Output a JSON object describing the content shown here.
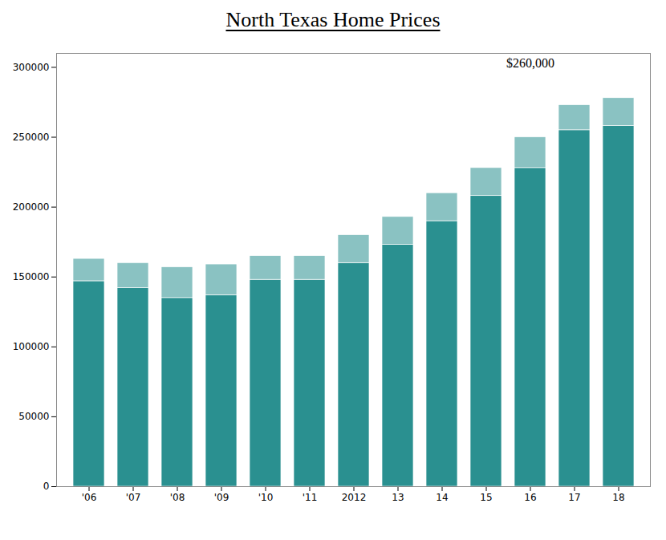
{
  "chart_data": {
    "type": "bar",
    "title": "North Texas Home Prices",
    "annotation": "$260,000",
    "categories": [
      "'06",
      "'07",
      "'08",
      "'09",
      "'10",
      "'11",
      "2012",
      "13",
      "14",
      "15",
      "16",
      "17",
      "18"
    ],
    "values": [
      147000,
      142000,
      135000,
      137000,
      148000,
      148000,
      160000,
      173000,
      190000,
      208000,
      228000,
      255000,
      258000
    ],
    "top_values": [
      163000,
      160000,
      157000,
      159000,
      165000,
      165000,
      180000,
      193000,
      210000,
      228000,
      250000,
      273000,
      278000
    ],
    "color": "#2A9090",
    "ylim": [
      0,
      310000
    ],
    "yticks": [
      0,
      50000,
      100000,
      150000,
      200000,
      250000,
      300000
    ],
    "grid": false
  }
}
